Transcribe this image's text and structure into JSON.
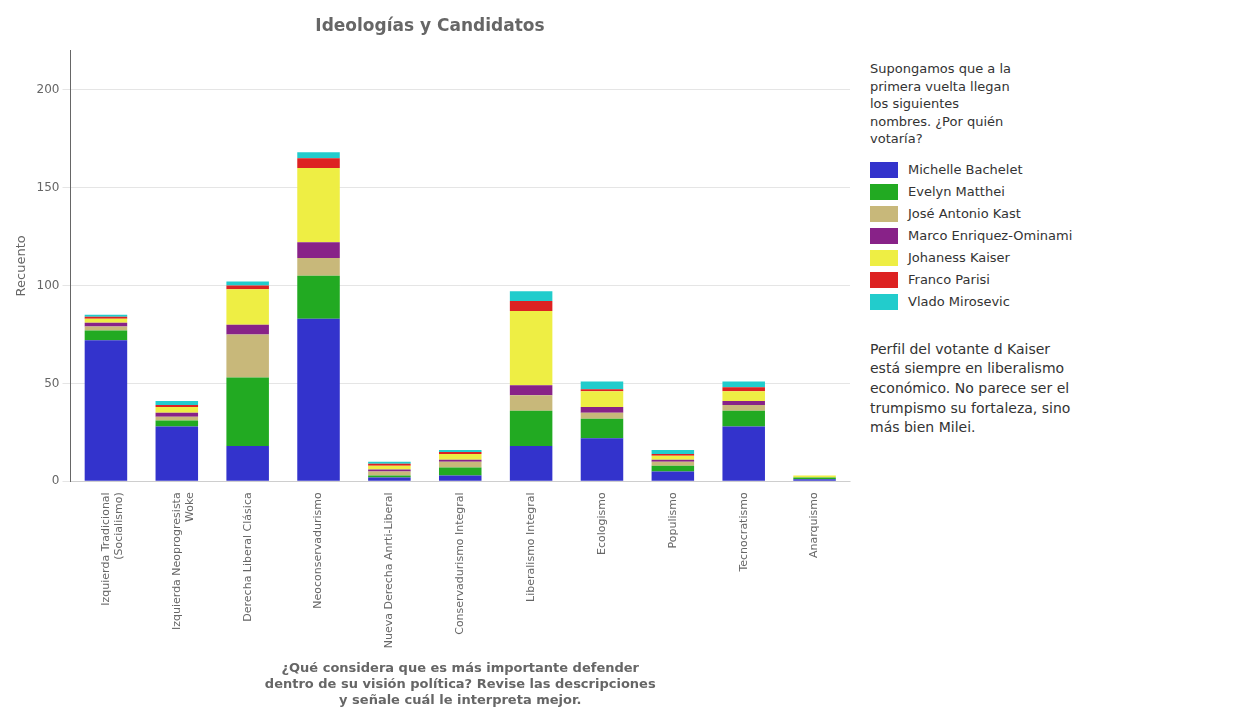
{
  "chart_data": {
    "type": "bar",
    "title": "Ideologías y Candidatos",
    "xlabel": "¿Qué considera que es más importante defender\ndentro de su visión política? Revise las descripciones\ny señale cuál le interpreta mejor.",
    "ylabel": "Recuento",
    "categories": [
      "Izquierda Tradicional\n(Socialismo)",
      "Izquierda Neoprogresista\nWoke",
      "Derecha Liberal Clásica",
      "Neoconservadurismo",
      "Nueva Derecha Anrti-Liberal",
      "Conservadurismo Integral",
      "Liberalismo Integral",
      "Ecologismo",
      "Populismo",
      "Tecnocratismo",
      "Anarquismo"
    ],
    "series": [
      {
        "name": "Michelle Bachelet",
        "color": "#3333cc",
        "values": [
          72,
          28,
          18,
          83,
          2,
          3,
          18,
          22,
          5,
          28,
          1
        ]
      },
      {
        "name": "Evelyn Matthei",
        "color": "#22aa22",
        "values": [
          5,
          3,
          35,
          22,
          1,
          4,
          18,
          10,
          3,
          8,
          1
        ]
      },
      {
        "name": "José Antonio Kast",
        "color": "#c8b87a",
        "values": [
          2,
          2,
          22,
          9,
          2,
          3,
          8,
          3,
          2,
          3,
          0
        ]
      },
      {
        "name": "Marco Enriquez-Ominami",
        "color": "#882288",
        "values": [
          2,
          2,
          5,
          8,
          1,
          1,
          5,
          3,
          1,
          2,
          0
        ]
      },
      {
        "name": "Johaness Kaiser",
        "color": "#eeee44",
        "values": [
          2,
          3,
          18,
          38,
          2,
          3,
          38,
          8,
          2,
          5,
          1
        ]
      },
      {
        "name": "Franco Parisi",
        "color": "#dd2222",
        "values": [
          1,
          1,
          2,
          5,
          1,
          1,
          5,
          1,
          1,
          2,
          0
        ]
      },
      {
        "name": "Vlado Mirosevic",
        "color": "#22cccc",
        "values": [
          1,
          2,
          2,
          3,
          1,
          1,
          5,
          4,
          2,
          3,
          0
        ]
      }
    ],
    "legend_title": "Supongamos que a la\nprimera vuelta llegan\nlos siguientes\nnombres. ¿Por quién\nvotaría?",
    "annotations": [
      "Perfil del votante d Kaiser\nestá siempre en liberalismo\neconómico. No parece ser el\ntrumpismo su fortaleza, sino\nmás bien Milei."
    ],
    "ylim": [
      0,
      220
    ],
    "yticks": [
      0,
      50,
      100,
      150,
      200
    ],
    "grid": true,
    "stacked": true,
    "legend": "right"
  }
}
